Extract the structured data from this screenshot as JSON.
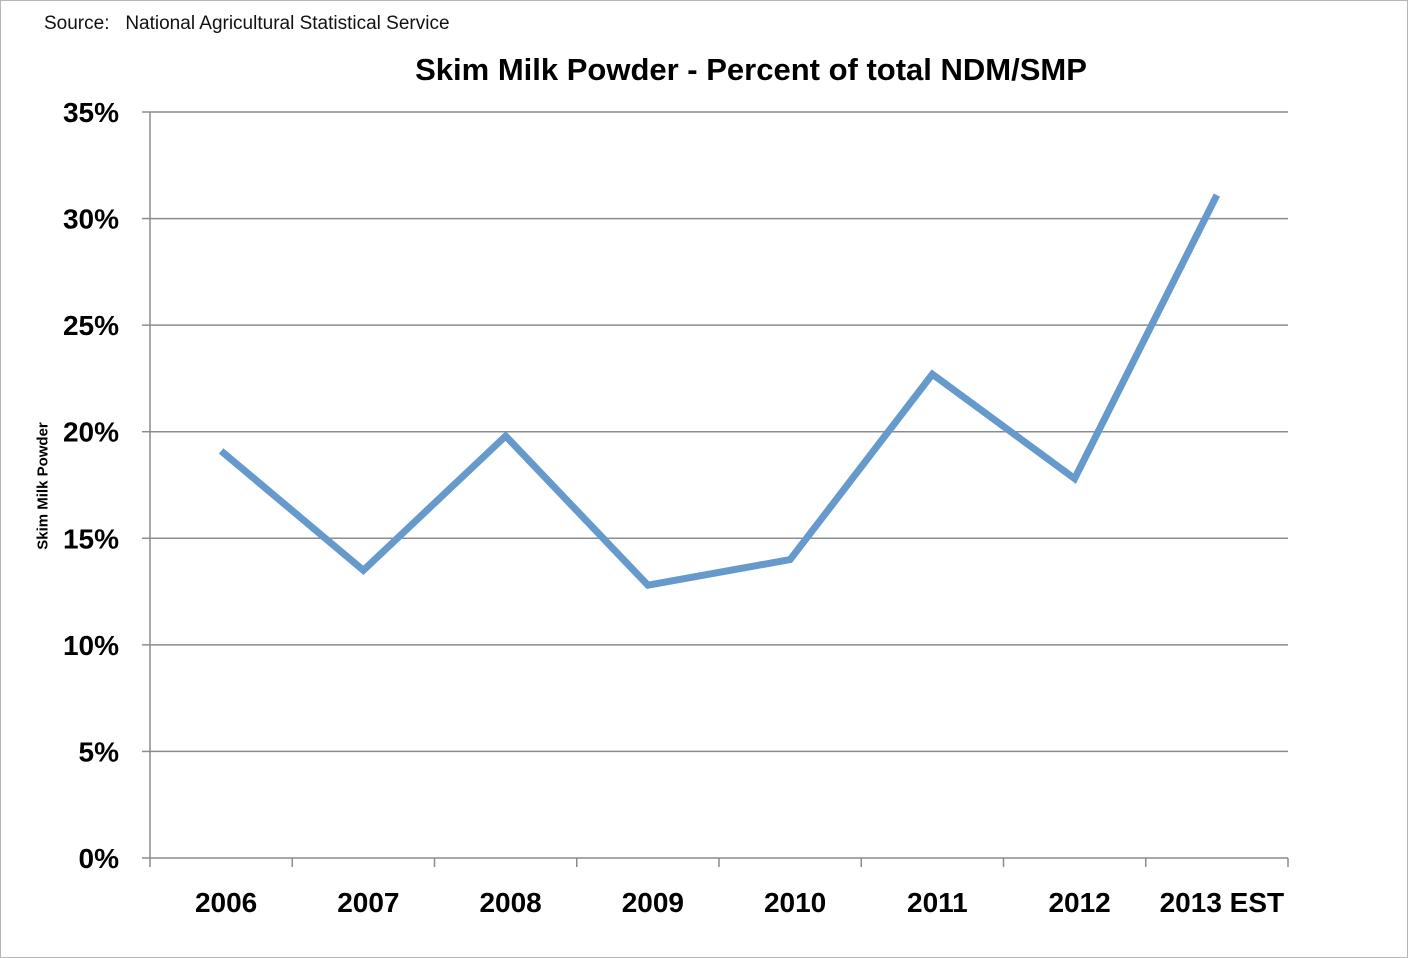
{
  "source": {
    "label": "Source:",
    "text": "National Agricultural Statistical Service"
  },
  "chart_data": {
    "type": "line",
    "title": "Skim Milk Powder - Percent of total NDM/SMP",
    "xlabel": "",
    "ylabel": "Skim Milk Powder",
    "categories": [
      "2006",
      "2007",
      "2008",
      "2009",
      "2010",
      "2011",
      "2012",
      "2013 EST"
    ],
    "series": [
      {
        "values": [
          19.1,
          13.5,
          19.8,
          12.8,
          14.0,
          22.7,
          17.8,
          31.1
        ],
        "color": "#6699cc"
      }
    ],
    "ylim": [
      0,
      35
    ],
    "yticks": [
      0,
      5,
      10,
      15,
      20,
      25,
      30,
      35
    ],
    "ytick_labels": [
      "0%",
      "5%",
      "10%",
      "15%",
      "20%",
      "25%",
      "30%",
      "35%"
    ],
    "grid": "horizontal",
    "legend": "none"
  }
}
